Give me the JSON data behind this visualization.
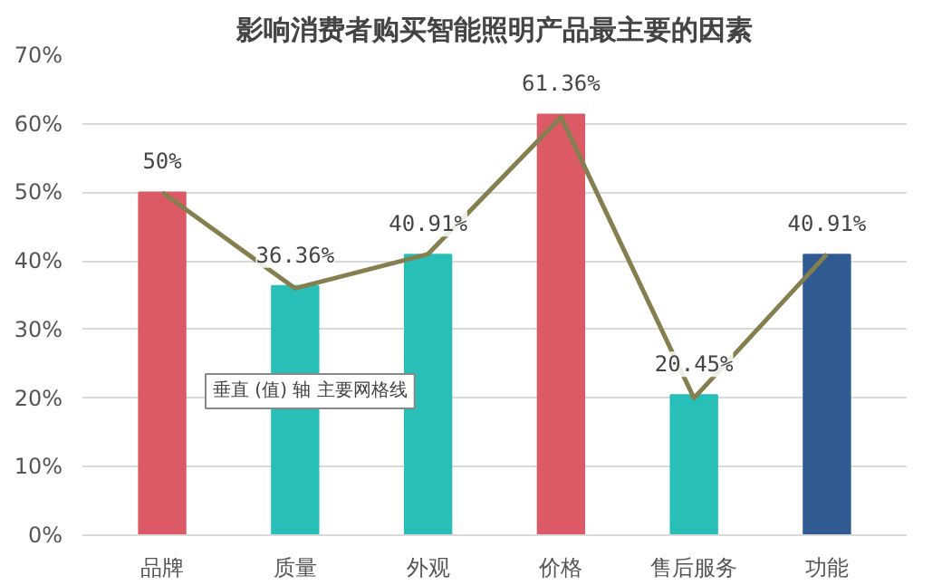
{
  "chart_data": {
    "type": "bar",
    "title": "影响消费者购买智能照明产品最主要的因素",
    "categories": [
      "品牌",
      "质量",
      "外观",
      "价格",
      "售后服务",
      "功能"
    ],
    "series": [
      {
        "colors": [
          "#dc5a66",
          "#28bfb8",
          "#28bfb8",
          "#dc5a66",
          "#28bfb8",
          "#2f5b92"
        ],
        "values": [
          50,
          36.36,
          40.91,
          61.36,
          20.45,
          40.91
        ],
        "value_labels": [
          "50%",
          "36.36%",
          "40.91%",
          "61.36%",
          "20.45%",
          "40.91%"
        ]
      },
      {
        "type": "line",
        "color": "#857f50",
        "values": [
          50,
          36,
          41,
          61,
          20,
          41
        ]
      }
    ],
    "ylim": [
      0,
      70
    ],
    "yticks": [
      {
        "value": 0,
        "label": "0%"
      },
      {
        "value": 10,
        "label": "10%"
      },
      {
        "value": 20,
        "label": "20%"
      },
      {
        "value": 30,
        "label": "30%"
      },
      {
        "value": 40,
        "label": "40%"
      },
      {
        "value": 50,
        "label": "50%"
      },
      {
        "value": 60,
        "label": "60%"
      },
      {
        "value": 70,
        "label": "70%"
      }
    ],
    "grid": "y",
    "annotations": [
      "垂直 (值) 轴 主要网格线"
    ]
  }
}
